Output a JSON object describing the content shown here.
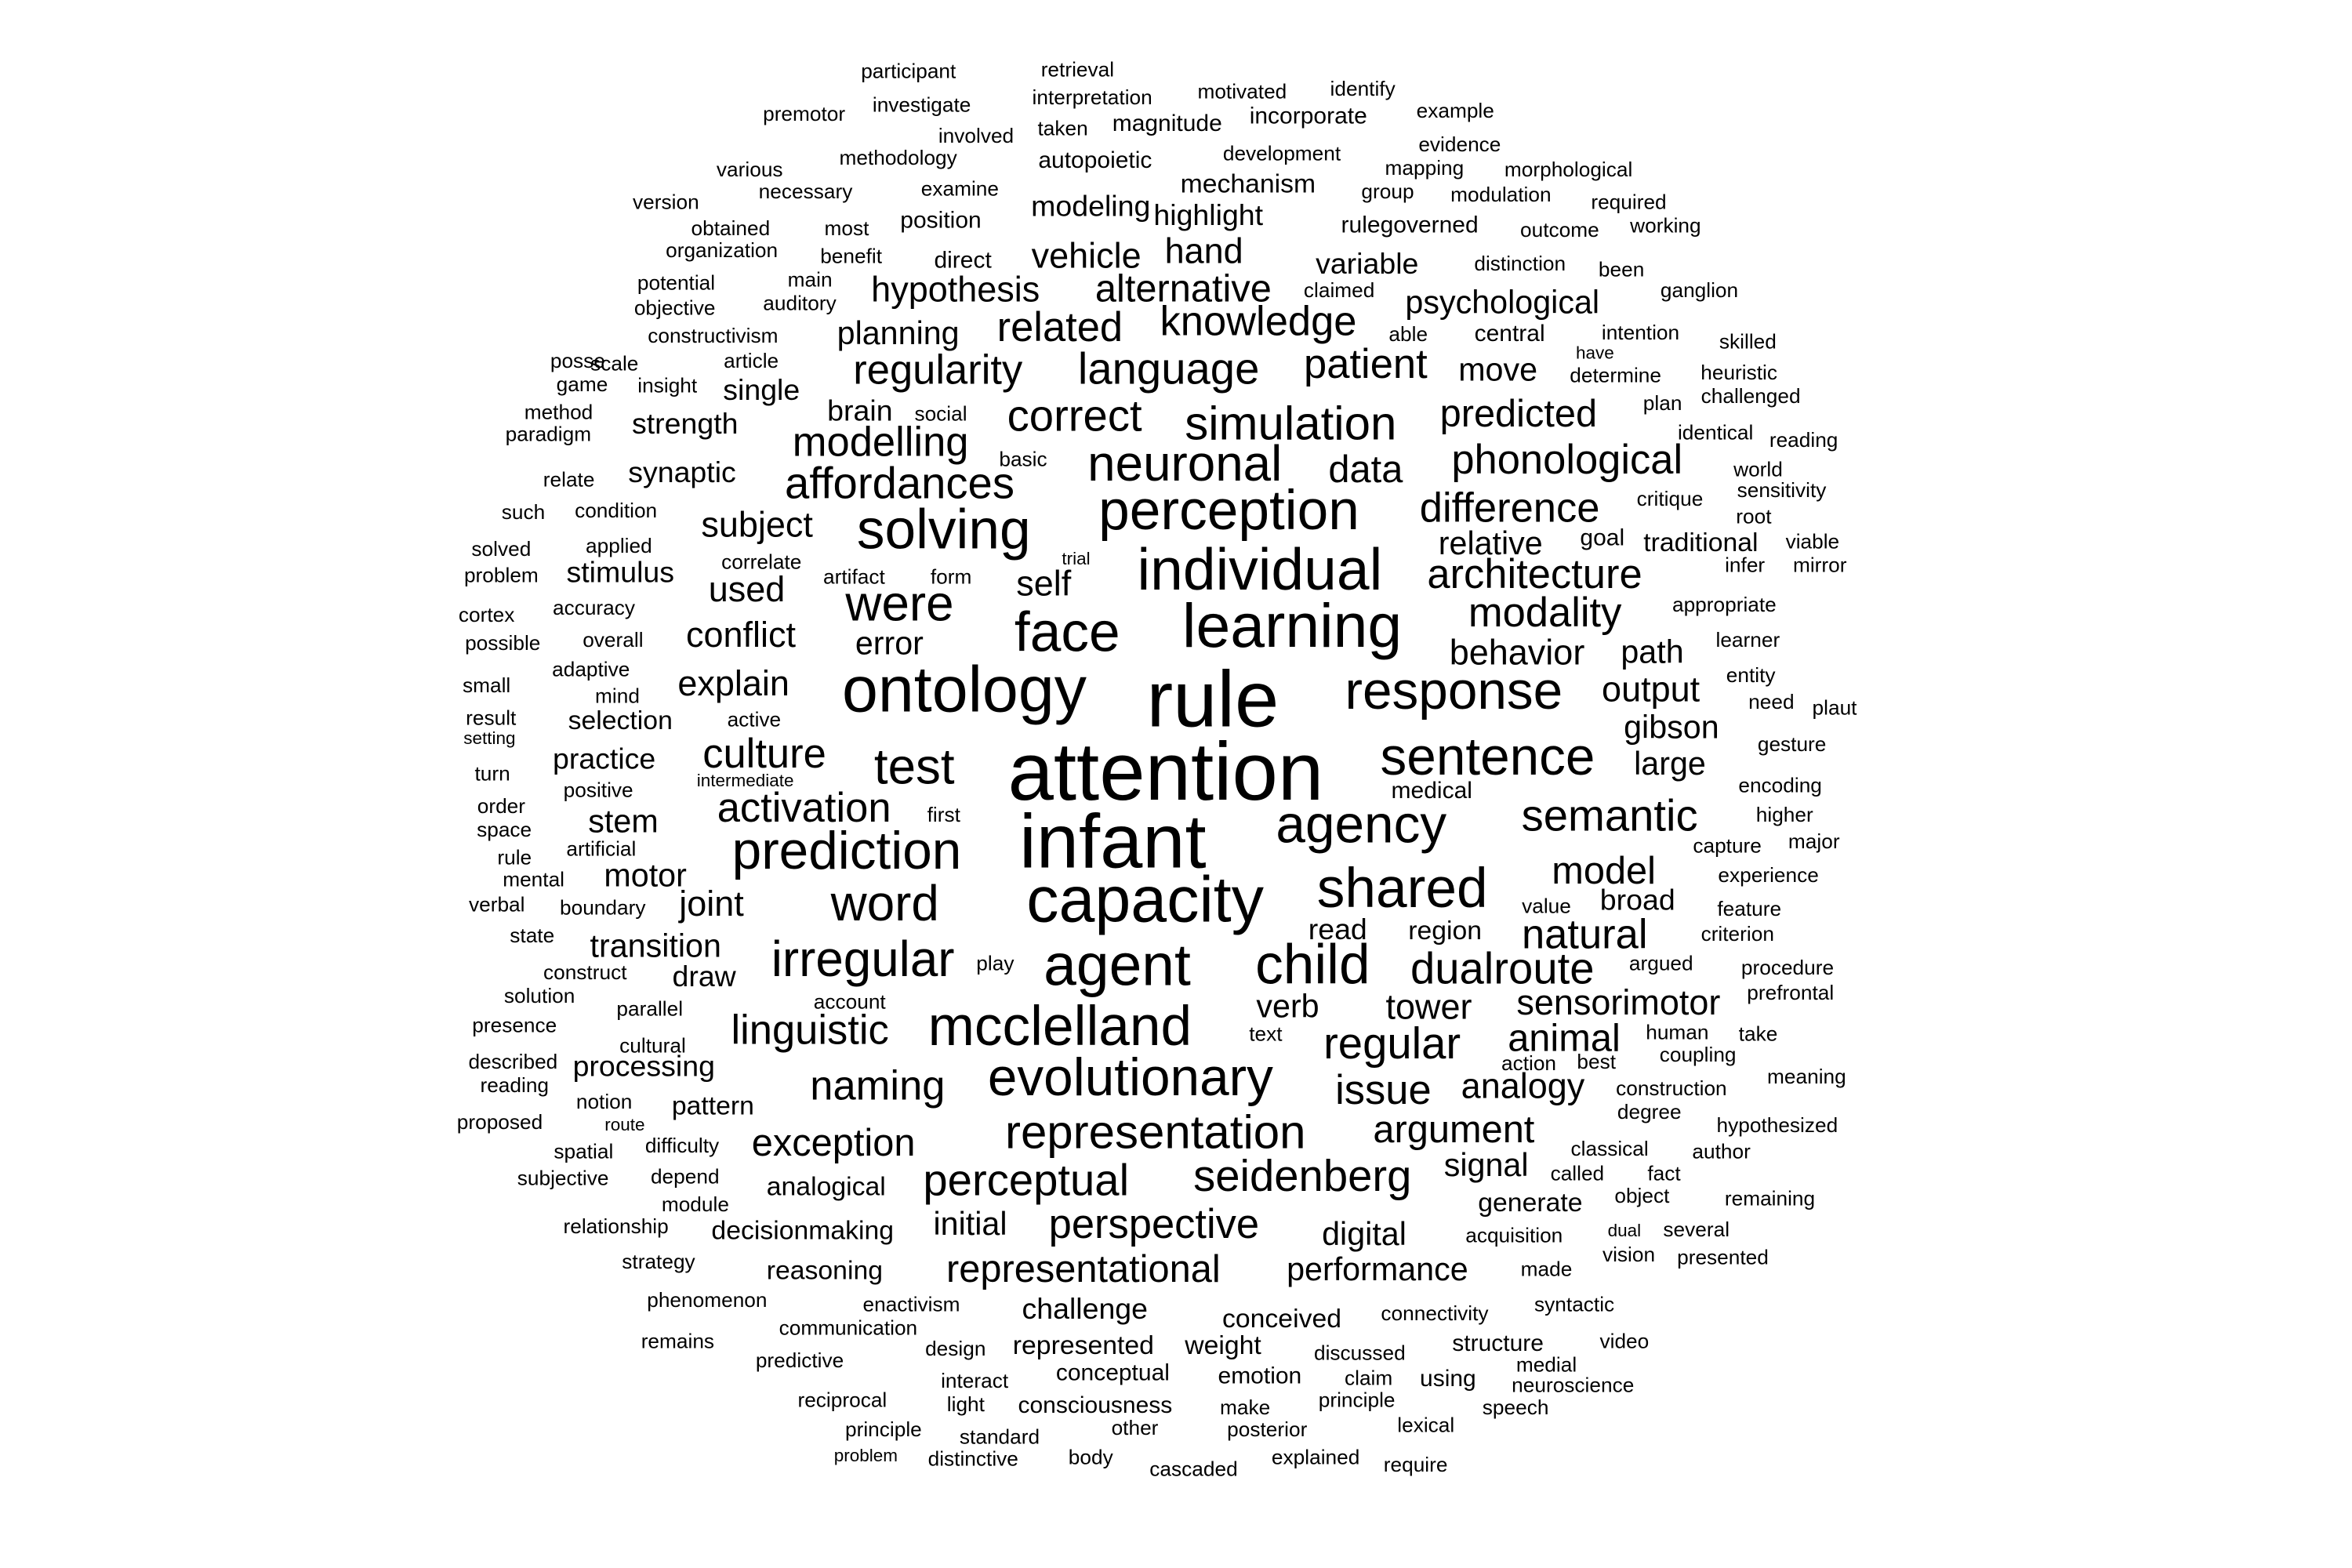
{
  "text_color": "#000000",
  "background": "#ffffff",
  "words": [
    "attention",
    "rule",
    "infant",
    "capacity",
    "ontology",
    "learning",
    "agent",
    "child",
    "face",
    "individual",
    "perception",
    "solving",
    "prediction",
    "shared",
    "response",
    "mcclelland",
    "agency",
    "evolutionary",
    "sentence",
    "test",
    "were",
    "word",
    "irregular",
    "representation",
    "neuronal",
    "simulation",
    "regular",
    "dualroute",
    "seidenberg",
    "semantic",
    "perspective",
    "perceptual",
    "correct",
    "modelling",
    "regularity",
    "language",
    "knowledge",
    "affordances",
    "architecture",
    "phonological",
    "modality",
    "patient",
    "difference",
    "natural",
    "linguistic",
    "naming",
    "culture",
    "activation",
    "issue",
    "argument",
    "representational",
    "exception",
    "alternative",
    "related",
    "data",
    "predicted",
    "model",
    "tower",
    "sensorimotor",
    "animal",
    "analogy",
    "explain",
    "conflict",
    "subject",
    "used",
    "self",
    "output",
    "behavior",
    "hypothesis",
    "vehicle",
    "hand",
    "error",
    "path",
    "gibson",
    "large",
    "planning",
    "joint",
    "transition",
    "modeling",
    "highlight",
    "psychological",
    "variable",
    "mechanism",
    "move",
    "brain",
    "single",
    "synaptic",
    "strength",
    "stimulus",
    "draw",
    "motor",
    "stem",
    "practice",
    "selection",
    "verb",
    "read",
    "region",
    "broad",
    "digital",
    "initial",
    "performance",
    "signal",
    "generate",
    "challenge",
    "processing",
    "pattern",
    "decisionmaking",
    "analogical",
    "conceived",
    "reasoning",
    "represented",
    "weight",
    "conceptual",
    "emotion",
    "consciousness",
    "relative",
    "goal",
    "traditional",
    "participant",
    "retrieval",
    "premotor",
    "investigate",
    "interpretation",
    "motivated",
    "identify",
    "example",
    "involved",
    "taken",
    "magnitude",
    "incorporate",
    "methodology",
    "autopoietic",
    "development",
    "evidence",
    "various",
    "mapping",
    "morphological",
    "necessary",
    "examine",
    "version",
    "group",
    "modulation",
    "required",
    "obtained",
    "most",
    "position",
    "rulegoverned",
    "outcome",
    "working",
    "organization",
    "benefit",
    "direct",
    "distinction",
    "been",
    "potential",
    "main",
    "claimed",
    "objective",
    "auditory",
    "ganglion",
    "constructivism",
    "intention",
    "skilled",
    "article",
    "able",
    "central",
    "posse",
    "scale",
    "have",
    "determine",
    "heuristic",
    "game",
    "insight",
    "plan",
    "challenged",
    "method",
    "social",
    "paradigm",
    "identical",
    "reading",
    "basic",
    "world",
    "relate",
    "sensitivity",
    "such",
    "condition",
    "critique",
    "root",
    "solved",
    "applied",
    "viable",
    "problem",
    "correlate",
    "artifact",
    "form",
    "trial",
    "infer",
    "mirror",
    "cortex",
    "accuracy",
    "appropriate",
    "possible",
    "overall",
    "learner",
    "small",
    "adaptive",
    "entity",
    "mind",
    "need",
    "result",
    "plaut",
    "active",
    "setting",
    "gesture",
    "turn",
    "intermediate",
    "encoding",
    "medical",
    "order",
    "positive",
    "higher",
    "space",
    "first",
    "major",
    "rule",
    "artificial",
    "capture",
    "mental",
    "experience",
    "verbal",
    "boundary",
    "value",
    "feature",
    "state",
    "criterion",
    "construct",
    "play",
    "argued",
    "procedure",
    "solution",
    "account",
    "prefrontal",
    "parallel",
    "presence",
    "cultural",
    "human",
    "take",
    "text",
    "described",
    "action",
    "best",
    "coupling",
    "reading",
    "meaning",
    "notion",
    "construction",
    "route",
    "proposed",
    "degree",
    "hypothesized",
    "difficulty",
    "classical",
    "author",
    "spatial",
    "called",
    "fact",
    "subjective",
    "depend",
    "object",
    "remaining",
    "module",
    "relationship",
    "acquisition",
    "dual",
    "several",
    "vision",
    "presented",
    "strategy",
    "made",
    "phenomenon",
    "enactivism",
    "syntactic",
    "connectivity",
    "communication",
    "remains",
    "design",
    "discussed",
    "structure",
    "video",
    "predictive",
    "medial",
    "interact",
    "claim",
    "using",
    "neuroscience",
    "reciprocal",
    "light",
    "principle",
    "speech",
    "principle",
    "other",
    "posterior",
    "lexical",
    "make",
    "standard",
    "problem",
    "distinctive",
    "body",
    "cascaded",
    "explained",
    "require"
  ]
}
